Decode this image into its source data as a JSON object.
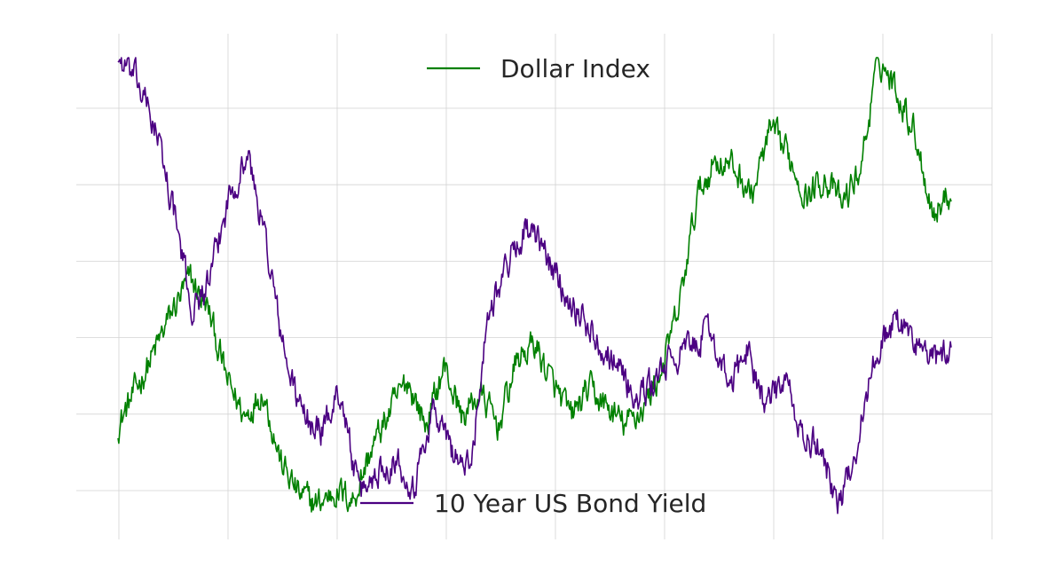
{
  "chart_data": {
    "type": "line",
    "title": "",
    "xlabel": "",
    "ylabel": "",
    "x_tick_count": 9,
    "y_tick_count": 6,
    "grid": true,
    "legend_placement": "separate per series: top-center (Dollar Index), bottom-center (10 Year US Bond Yield)",
    "series": [
      {
        "name": "Dollar Index",
        "color": "#008000",
        "values": [
          0.2,
          0.28,
          0.36,
          0.45,
          0.52,
          0.45,
          0.3,
          0.22,
          0.28,
          0.12,
          0.05,
          0.03,
          0.06,
          0.04,
          0.15,
          0.23,
          0.3,
          0.2,
          0.33,
          0.22,
          0.27,
          0.2,
          0.34,
          0.38,
          0.29,
          0.22,
          0.28,
          0.24,
          0.2,
          0.24,
          0.32,
          0.46,
          0.7,
          0.78,
          0.76,
          0.7,
          0.84,
          0.79,
          0.7,
          0.74,
          0.68,
          0.76,
          1.0,
          0.93,
          0.84,
          0.66,
          0.71
        ]
      },
      {
        "name": "10 Year US Bond Yield",
        "color": "#4b0082",
        "values": [
          1.0,
          0.95,
          0.85,
          0.67,
          0.45,
          0.52,
          0.7,
          0.79,
          0.6,
          0.35,
          0.22,
          0.19,
          0.28,
          0.05,
          0.1,
          0.13,
          0.07,
          0.24,
          0.15,
          0.1,
          0.45,
          0.55,
          0.63,
          0.58,
          0.5,
          0.44,
          0.38,
          0.34,
          0.25,
          0.3,
          0.35,
          0.37,
          0.41,
          0.28,
          0.37,
          0.24,
          0.3,
          0.17,
          0.15,
          0.02,
          0.18,
          0.37,
          0.43,
          0.39,
          0.34,
          0.36
        ]
      }
    ]
  },
  "legend": {
    "top_label": "Dollar Index",
    "bottom_label": "10 Year US Bond Yield"
  }
}
